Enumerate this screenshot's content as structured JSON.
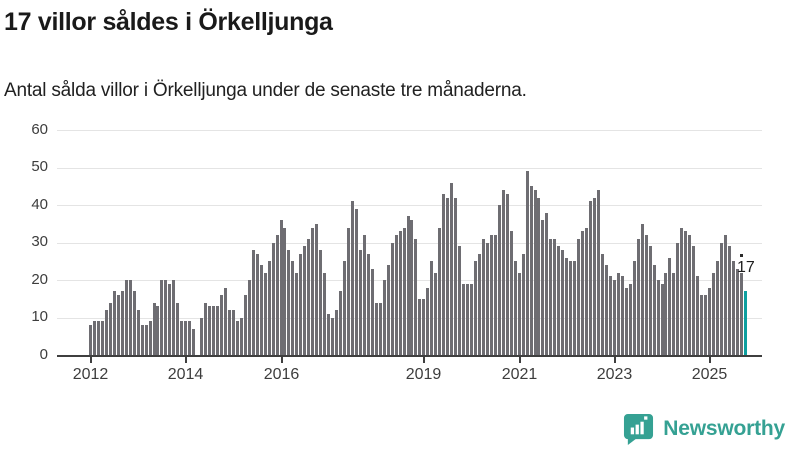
{
  "header": {
    "title": "17 villor såldes i Örkelljunga",
    "subtitle": "Antal sålda villor i Örkelljunga under de senaste tre månaderna."
  },
  "chart_data": {
    "type": "bar",
    "title": "17 villor såldes i Örkelljunga",
    "subtitle": "Antal sålda villor i Örkelljunga under de senaste tre månaderna.",
    "ylabel": "",
    "xlabel": "",
    "ylim": [
      0,
      60
    ],
    "y_ticks": [
      0,
      10,
      20,
      30,
      40,
      50,
      60
    ],
    "grid": true,
    "x_start": "2012-01",
    "x_frequency": "monthly",
    "x_tick_labels": [
      "2012",
      "2014",
      "2016",
      "2019",
      "2021",
      "2023",
      "2025"
    ],
    "x_tick_indices": [
      0,
      24,
      48,
      84,
      108,
      132,
      156
    ],
    "values": [
      8,
      9,
      9,
      9,
      12,
      14,
      17,
      16,
      17,
      20,
      20,
      17,
      12,
      8,
      8,
      9,
      14,
      13,
      20,
      20,
      19,
      20,
      14,
      9,
      9,
      9,
      7,
      0,
      10,
      14,
      13,
      13,
      13,
      16,
      18,
      12,
      12,
      9,
      10,
      16,
      20,
      28,
      27,
      24,
      22,
      25,
      30,
      32,
      36,
      34,
      28,
      25,
      22,
      27,
      29,
      31,
      34,
      35,
      28,
      22,
      11,
      10,
      12,
      17,
      25,
      34,
      41,
      39,
      28,
      32,
      27,
      23,
      14,
      14,
      20,
      24,
      30,
      32,
      33,
      34,
      37,
      36,
      31,
      15,
      15,
      18,
      25,
      22,
      34,
      43,
      42,
      46,
      42,
      29,
      19,
      19,
      19,
      25,
      27,
      31,
      30,
      32,
      32,
      40,
      44,
      43,
      33,
      25,
      22,
      27,
      49,
      45,
      44,
      42,
      36,
      38,
      31,
      31,
      29,
      28,
      26,
      25,
      25,
      31,
      33,
      34,
      41,
      42,
      44,
      27,
      24,
      21,
      20,
      22,
      21,
      18,
      19,
      25,
      31,
      35,
      32,
      29,
      24,
      20,
      19,
      22,
      26,
      22,
      30,
      34,
      33,
      32,
      29,
      21,
      16,
      16,
      18,
      22,
      25,
      30,
      32,
      29,
      25,
      23,
      22,
      17
    ],
    "highlight_last": true,
    "last_value_label": "17",
    "colors": {
      "bar": "#6e6d72",
      "highlight": "#0da0a0",
      "grid": "#e4e4e4",
      "axis": "#3f3f3f",
      "label": "#3d3d3d"
    },
    "legend": null
  },
  "footer": {
    "brand": "Newsworthy",
    "brand_color": "#35a193"
  }
}
